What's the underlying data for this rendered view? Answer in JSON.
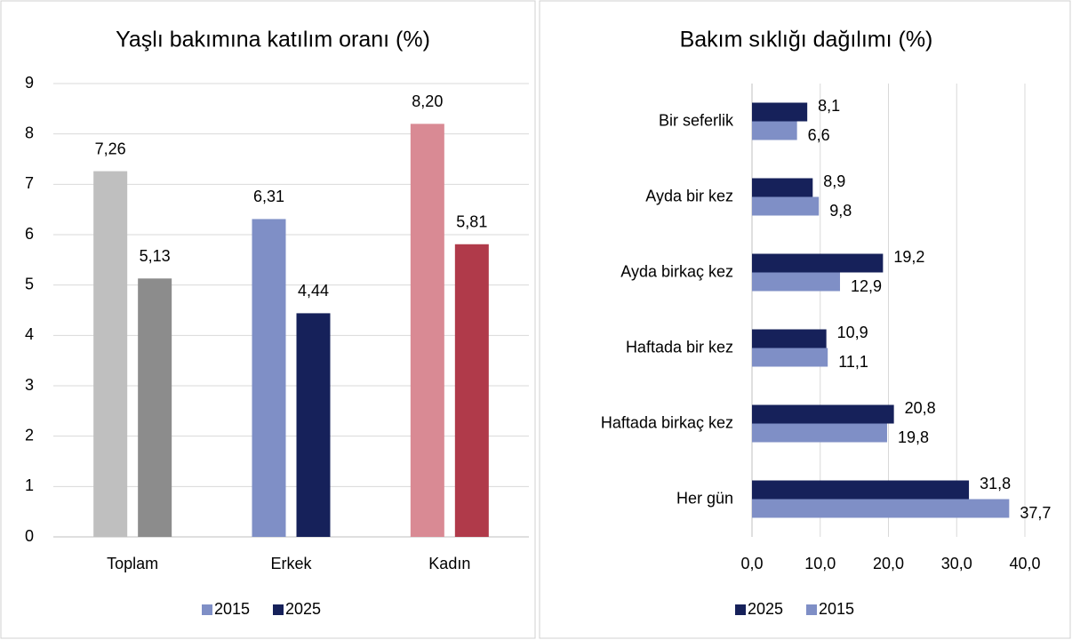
{
  "chart_data": [
    {
      "type": "bar",
      "title": "Yaşlı bakımına katılım oranı (%)",
      "categories": [
        "Toplam",
        "Erkek",
        "Kadın"
      ],
      "series": [
        {
          "name": "2015",
          "color": "#7f8fc6",
          "colors": [
            "#bfbfbf",
            "#7f8fc6",
            "#d98a94"
          ],
          "values": [
            7.26,
            6.31,
            8.2
          ],
          "value_labels": [
            "7,26",
            "6,31",
            "8,20"
          ]
        },
        {
          "name": "2025",
          "color": "#16215a",
          "colors": [
            "#8c8c8c",
            "#16215a",
            "#b03a4a"
          ],
          "values": [
            5.13,
            4.44,
            5.81
          ],
          "value_labels": [
            "5,13",
            "4,44",
            "5,81"
          ]
        }
      ],
      "ylim": [
        0,
        9
      ],
      "yticks": [
        0,
        1,
        2,
        3,
        4,
        5,
        6,
        7,
        8,
        9
      ],
      "grid": true,
      "legend": "bottom"
    },
    {
      "type": "barh",
      "title": "Bakım sıklığı dağılımı (%)",
      "categories": [
        "Bir seferlik",
        "Ayda bir kez",
        "Ayda birkaç kez",
        "Haftada bir kez",
        "Haftada birkaç kez",
        "Her gün"
      ],
      "series": [
        {
          "name": "2025",
          "color": "#16215a",
          "values": [
            8.1,
            8.9,
            19.2,
            10.9,
            20.8,
            31.8
          ],
          "value_labels": [
            "8,1",
            "8,9",
            "19,2",
            "10,9",
            "20,8",
            "31,8"
          ]
        },
        {
          "name": "2015",
          "color": "#7f8fc6",
          "values": [
            6.6,
            9.8,
            12.9,
            11.1,
            19.8,
            37.7
          ],
          "value_labels": [
            "6,6",
            "9,8",
            "12,9",
            "11,1",
            "19,8",
            "37,7"
          ]
        }
      ],
      "xlim": [
        0,
        40
      ],
      "xticks": [
        {
          "value": 0,
          "label": "0,0"
        },
        {
          "value": 10,
          "label": "10,0"
        },
        {
          "value": 20,
          "label": "20,0"
        },
        {
          "value": 30,
          "label": "30,0"
        },
        {
          "value": 40,
          "label": "40,0"
        }
      ],
      "grid": true,
      "legend": "bottom"
    }
  ]
}
